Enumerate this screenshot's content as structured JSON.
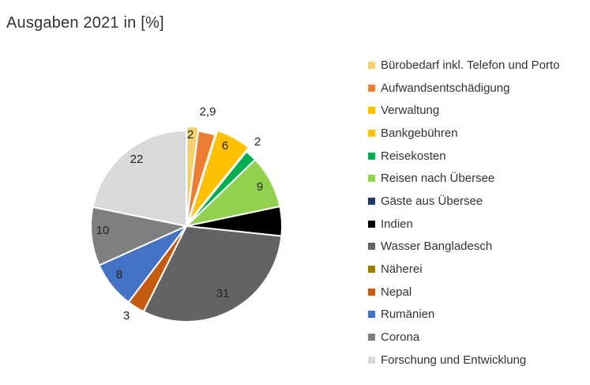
{
  "title": "Ausgaben 2021  in [%]",
  "chart_data": {
    "type": "pie",
    "title": "Ausgaben 2021  in [%]",
    "legend_position": "right",
    "series": [
      {
        "name": "Bürobedarf inkl. Telefon und Porto",
        "value": 2,
        "label": "2",
        "color": "#f5d06c"
      },
      {
        "name": "Aufwandsentschädigung",
        "value": 2.9,
        "label": "2,9",
        "color": "#ed7d31"
      },
      {
        "name": "Verwaltung",
        "value": 6,
        "label": "6",
        "color": "#ffc000"
      },
      {
        "name": "Bankgebühren",
        "value": 0,
        "label": "",
        "color": "#ffc000"
      },
      {
        "name": "Reisekosten",
        "value": 2,
        "label": "2",
        "color": "#00b050"
      },
      {
        "name": "Reisen nach Übersee",
        "value": 9,
        "label": "9",
        "color": "#92d050"
      },
      {
        "name": "Gäste aus Übersee",
        "value": 0,
        "label": "",
        "color": "#1f3864"
      },
      {
        "name": "Indien",
        "value": 5,
        "label": "",
        "color": "#000000"
      },
      {
        "name": "Wasser Bangladesch",
        "value": 31,
        "label": "31",
        "color": "#636363"
      },
      {
        "name": "Näherei",
        "value": 0,
        "label": "",
        "color": "#9c7d00"
      },
      {
        "name": "Nepal",
        "value": 3,
        "label": "3",
        "color": "#c55a11"
      },
      {
        "name": "Rumänien",
        "value": 8,
        "label": "8",
        "color": "#4472c4"
      },
      {
        "name": "Corona",
        "value": 10,
        "label": "10",
        "color": "#7f7f7f"
      },
      {
        "name": "Forschung und Entwicklung",
        "value": 22,
        "label": "22",
        "color": "#d9d9d9"
      }
    ]
  }
}
